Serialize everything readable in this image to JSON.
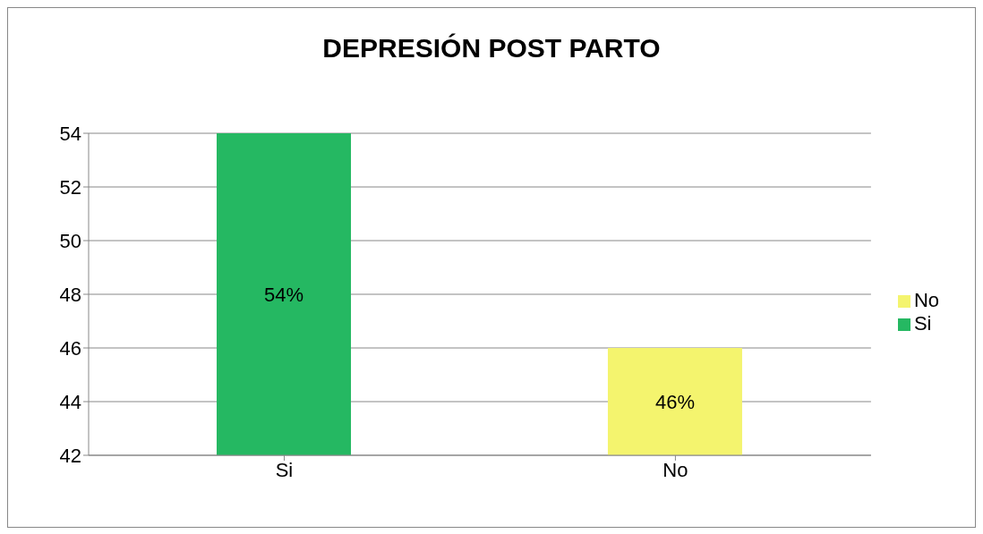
{
  "chart_data": {
    "type": "bar",
    "title": "DEPRESIÓN POST PARTO",
    "categories": [
      "Si",
      "No"
    ],
    "series": [
      {
        "name": "Si",
        "color": "#25b862",
        "values": [
          54,
          null
        ],
        "value_labels": [
          "54%",
          null
        ]
      },
      {
        "name": "No",
        "color": "#f4f46e",
        "values": [
          null,
          46
        ],
        "value_labels": [
          null,
          "46%"
        ]
      }
    ],
    "ylim": [
      42,
      54
    ],
    "yticks": [
      42,
      44,
      46,
      48,
      50,
      52,
      54
    ],
    "grid": "y",
    "legend": "right"
  }
}
